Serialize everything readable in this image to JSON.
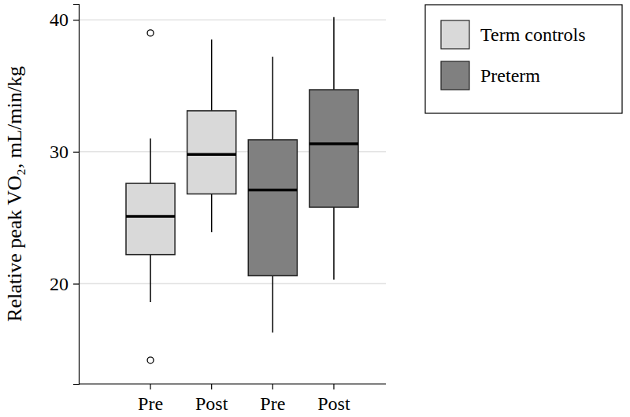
{
  "chart_data": {
    "type": "box",
    "y_label": "Relative peak VO₂, mL/min/kg",
    "categories": [
      "Pre",
      "Post",
      "Pre",
      "Post"
    ],
    "ylim": [
      12.4,
      41.2
    ],
    "yticks": [
      20,
      30,
      40
    ],
    "grid": true,
    "legend": "top-right",
    "series": [
      {
        "name": "Term controls",
        "color": "#d9d9d9",
        "min": [
          18.6,
          23.9,
          null,
          null
        ],
        "q1": [
          22.2,
          26.8,
          null,
          null
        ],
        "median": [
          25.1,
          29.8,
          null,
          null
        ],
        "q3": [
          27.6,
          33.1,
          null,
          null
        ],
        "max": [
          31.0,
          38.5,
          null,
          null
        ],
        "outliers": [
          [
            14.2,
            39.0
          ],
          [],
          null,
          null
        ]
      },
      {
        "name": "Preterm",
        "color": "#808080",
        "min": [
          null,
          null,
          16.3,
          20.3
        ],
        "q1": [
          null,
          null,
          20.6,
          25.8
        ],
        "median": [
          null,
          null,
          27.1,
          30.6
        ],
        "q3": [
          null,
          null,
          30.9,
          34.7
        ],
        "max": [
          null,
          null,
          37.2,
          40.2
        ],
        "outliers": [
          null,
          null,
          [],
          []
        ]
      }
    ]
  }
}
